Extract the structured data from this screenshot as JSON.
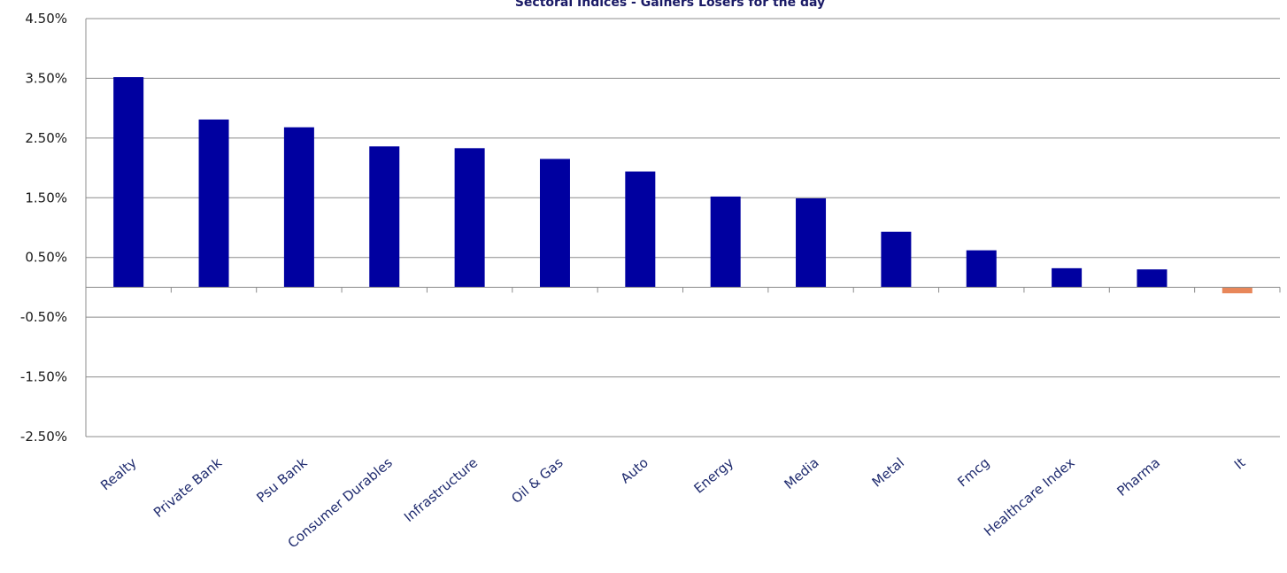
{
  "chart_data": {
    "type": "bar",
    "title": "Sectoral Indices - Gainers Losers for the day",
    "categories": [
      "Realty",
      "Private Bank",
      "Psu Bank",
      "Consumer Durables",
      "Infrastructure",
      "Oil & Gas",
      "Auto",
      "Energy",
      "Media",
      "Metal",
      "Fmcg",
      "Healthcare Index",
      "Pharma",
      "It"
    ],
    "series": [
      {
        "values": [
          3.52,
          2.81,
          2.68,
          2.36,
          2.33,
          2.15,
          1.94,
          1.52,
          1.49,
          0.93,
          0.62,
          0.32,
          0.3,
          -0.1
        ]
      }
    ],
    "y_ticks": [
      "4.50%",
      "3.50%",
      "2.50%",
      "1.50%",
      "0.50%",
      "-0.50%",
      "-1.50%",
      "-2.50%"
    ],
    "ylim": [
      -2.5,
      4.5
    ],
    "y_tick_values": [
      4.5,
      3.5,
      2.5,
      1.5,
      0.5,
      -0.5,
      -1.5,
      -2.5
    ],
    "grid": true,
    "colors": {
      "gain": "#0000a0",
      "loss": "#e8875a"
    }
  }
}
